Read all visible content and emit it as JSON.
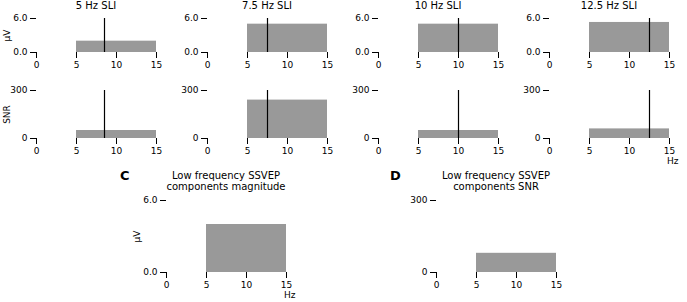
{
  "chart_data": [
    {
      "type": "bar",
      "title": "5 Hz SLI",
      "ylabel": "μV",
      "bins": [
        5,
        15
      ],
      "values": [
        2.0
      ],
      "color": "#999999",
      "vline": {
        "x": 8.5,
        "color": "black"
      },
      "xlim": [
        0,
        15
      ],
      "xticks": [
        0,
        5,
        10,
        15
      ],
      "ylim": [
        0,
        6
      ],
      "yticks": [
        0,
        6
      ]
    },
    {
      "type": "bar",
      "title": "7.5 Hz SLI",
      "bins": [
        5,
        15
      ],
      "values": [
        5.0
      ],
      "color": "#999999",
      "vline": {
        "x": 7.5,
        "color": "black"
      },
      "xlim": [
        0,
        15
      ],
      "xticks": [
        0,
        5,
        10,
        15
      ],
      "ylim": [
        0,
        6
      ],
      "yticks": [
        0,
        6
      ]
    },
    {
      "type": "bar",
      "title": "10 Hz SLI",
      "bins": [
        5,
        15
      ],
      "values": [
        5.0
      ],
      "color": "#999999",
      "vline": {
        "x": 10.0,
        "color": "black"
      },
      "xlim": [
        0,
        15
      ],
      "xticks": [
        0,
        5,
        10,
        15
      ],
      "ylim": [
        0,
        6
      ],
      "yticks": [
        0,
        6
      ]
    },
    {
      "type": "bar",
      "title": "12.5 Hz SLI",
      "bins": [
        5,
        15
      ],
      "values": [
        5.3
      ],
      "color": "#999999",
      "vline": {
        "x": 12.5,
        "color": "black"
      },
      "xlim": [
        0,
        15
      ],
      "xticks": [
        0,
        5,
        10,
        15
      ],
      "ylim": [
        0,
        6
      ],
      "yticks": [
        0,
        6
      ]
    },
    {
      "type": "bar",
      "ylabel": "SNR",
      "bins": [
        5,
        15
      ],
      "values": [
        50
      ],
      "color": "#999999",
      "vline": {
        "x": 8.5,
        "color": "black"
      },
      "xlim": [
        0,
        15
      ],
      "xticks": [
        0,
        5,
        10,
        15
      ],
      "ylim": [
        0,
        300
      ],
      "yticks": [
        0,
        300
      ]
    },
    {
      "type": "bar",
      "bins": [
        5,
        15
      ],
      "values": [
        240
      ],
      "color": "#999999",
      "vline": {
        "x": 7.5,
        "color": "black"
      },
      "xlim": [
        0,
        15
      ],
      "xticks": [
        0,
        5,
        10,
        15
      ],
      "ylim": [
        0,
        300
      ],
      "yticks": [
        0,
        300
      ]
    },
    {
      "type": "bar",
      "bins": [
        5,
        15
      ],
      "values": [
        50
      ],
      "color": "#999999",
      "vline": {
        "x": 10.0,
        "color": "black"
      },
      "xlim": [
        0,
        15
      ],
      "xticks": [
        0,
        5,
        10,
        15
      ],
      "ylim": [
        0,
        300
      ],
      "yticks": [
        0,
        300
      ]
    },
    {
      "type": "bar",
      "xlabel": "Hz",
      "bins": [
        5,
        15
      ],
      "values": [
        60
      ],
      "color": "#999999",
      "vline": {
        "x": 12.5,
        "color": "black"
      },
      "xlim": [
        0,
        15
      ],
      "xticks": [
        0,
        5,
        10,
        15
      ],
      "ylim": [
        0,
        300
      ],
      "yticks": [
        0,
        300
      ]
    },
    {
      "type": "bar",
      "title": "Low frequency SSVEP\ncomponents magnitude",
      "annotation": "C",
      "ylabel": "μV",
      "xlabel": "Hz",
      "bins": [
        5,
        15
      ],
      "values": [
        4.0
      ],
      "color": "#999999",
      "xlim": [
        0,
        15
      ],
      "xticks": [
        0,
        5,
        10,
        15
      ],
      "ylim": [
        0,
        6
      ],
      "yticks": [
        0,
        6
      ]
    },
    {
      "type": "bar",
      "title": "Low frequency SSVEP\ncomponents SNR",
      "annotation": "D",
      "bins": [
        5,
        15
      ],
      "values": [
        80
      ],
      "color": "#999999",
      "xlim": [
        0,
        15
      ],
      "xticks": [
        0,
        5,
        10,
        15
      ],
      "ylim": [
        0,
        300
      ],
      "yticks": [
        0,
        300
      ]
    }
  ]
}
